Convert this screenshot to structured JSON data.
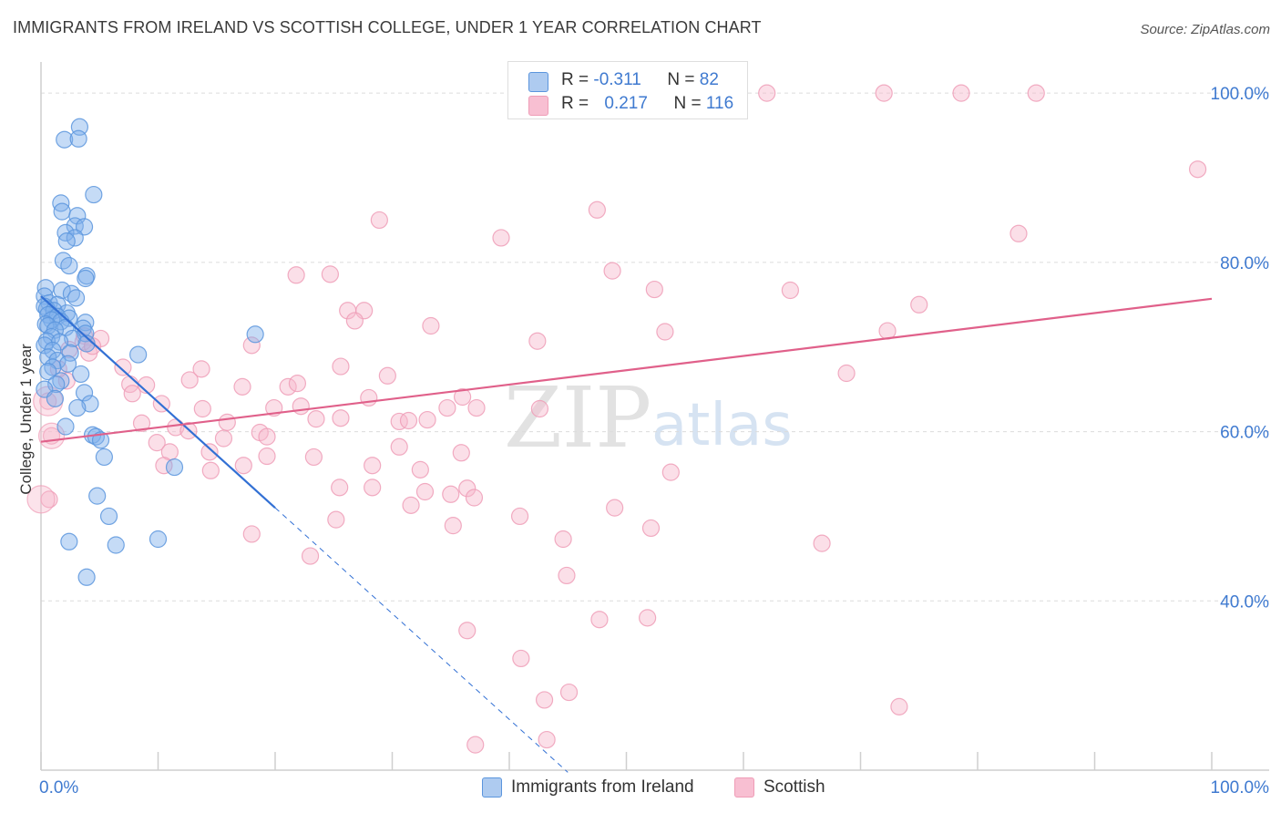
{
  "title": "IMMIGRANTS FROM IRELAND VS SCOTTISH COLLEGE, UNDER 1 YEAR CORRELATION CHART",
  "source": "Source: ZipAtlas.com",
  "watermark": {
    "zip": "ZIP",
    "atlas": "atlas"
  },
  "legend": {
    "rows": [
      {
        "r_label": "R = ",
        "r_value": "-0.311",
        "n_label": "N = ",
        "n_value": "82",
        "color": "#aecbf0"
      },
      {
        "r_label": "R = ",
        "r_value": "0.217",
        "n_label": "N = ",
        "n_value": "116",
        "color": "#f8bfd2"
      }
    ]
  },
  "bottom_legend": {
    "items": [
      {
        "label": "Immigrants from Ireland",
        "color": "#aecbf0"
      },
      {
        "label": "Scottish",
        "color": "#f8bfd2"
      }
    ]
  },
  "chart_data": {
    "type": "scatter",
    "title": "IMMIGRANTS FROM IRELAND VS SCOTTISH COLLEGE, UNDER 1 YEAR CORRELATION CHART",
    "xlabel": "",
    "ylabel": "College, Under 1 year",
    "xlim": [
      0,
      100
    ],
    "ylim": [
      20,
      104
    ],
    "x_tick_labels": [
      "0.0%",
      "100.0%"
    ],
    "y_ticks": [
      40,
      60,
      80,
      100
    ],
    "y_tick_labels": [
      "40.0%",
      "60.0%",
      "80.0%",
      "100.0%"
    ],
    "grid": true,
    "legend_position": "top-center",
    "series": [
      {
        "name": "Immigrants from Ireland",
        "color": "#7fb0ea",
        "stroke": "#5b95dd",
        "trend_color": "#3270d4",
        "trend": {
          "x0": 0.0,
          "y0": 76.0,
          "x1": 20.0,
          "y1": 51.0,
          "dash_to_x": 45.0
        },
        "points": [
          [
            3.3,
            96.0
          ],
          [
            2.0,
            94.5
          ],
          [
            3.2,
            94.6
          ],
          [
            4.5,
            88.0
          ],
          [
            1.7,
            87.0
          ],
          [
            1.8,
            86.0
          ],
          [
            3.1,
            85.5
          ],
          [
            2.9,
            84.3
          ],
          [
            3.7,
            84.2
          ],
          [
            2.1,
            83.5
          ],
          [
            2.9,
            82.9
          ],
          [
            2.2,
            82.5
          ],
          [
            1.9,
            80.2
          ],
          [
            2.4,
            79.6
          ],
          [
            3.9,
            78.4
          ],
          [
            3.8,
            78.1
          ],
          [
            0.4,
            77.0
          ],
          [
            1.8,
            76.7
          ],
          [
            2.6,
            76.3
          ],
          [
            0.3,
            76.0
          ],
          [
            3.0,
            75.8
          ],
          [
            0.7,
            75.2
          ],
          [
            1.4,
            75.0
          ],
          [
            0.3,
            74.8
          ],
          [
            0.5,
            74.5
          ],
          [
            1.1,
            74.3
          ],
          [
            2.2,
            74.0
          ],
          [
            0.6,
            73.8
          ],
          [
            1.4,
            73.6
          ],
          [
            2.4,
            73.4
          ],
          [
            0.9,
            73.2
          ],
          [
            1.7,
            73.0
          ],
          [
            3.8,
            72.9
          ],
          [
            0.4,
            72.7
          ],
          [
            0.6,
            72.5
          ],
          [
            2.1,
            72.3
          ],
          [
            3.6,
            72.2
          ],
          [
            1.2,
            72.0
          ],
          [
            3.8,
            71.6
          ],
          [
            0.9,
            71.2
          ],
          [
            2.7,
            71.0
          ],
          [
            18.3,
            71.5
          ],
          [
            0.5,
            70.7
          ],
          [
            1.6,
            70.6
          ],
          [
            3.9,
            70.4
          ],
          [
            0.3,
            70.2
          ],
          [
            1.0,
            69.6
          ],
          [
            2.5,
            69.3
          ],
          [
            8.3,
            69.1
          ],
          [
            0.6,
            68.8
          ],
          [
            1.4,
            68.4
          ],
          [
            2.3,
            68.0
          ],
          [
            1.0,
            67.6
          ],
          [
            0.6,
            67.1
          ],
          [
            3.4,
            66.8
          ],
          [
            1.7,
            66.0
          ],
          [
            1.3,
            65.6
          ],
          [
            0.3,
            65.0
          ],
          [
            3.7,
            64.6
          ],
          [
            1.2,
            63.9
          ],
          [
            4.2,
            63.3
          ],
          [
            3.1,
            62.8
          ],
          [
            2.1,
            60.6
          ],
          [
            4.4,
            59.6
          ],
          [
            4.7,
            59.4
          ],
          [
            5.1,
            59.0
          ],
          [
            5.4,
            57.0
          ],
          [
            11.4,
            55.8
          ],
          [
            4.8,
            52.4
          ],
          [
            5.8,
            50.0
          ],
          [
            2.4,
            47.0
          ],
          [
            10.0,
            47.3
          ],
          [
            6.4,
            46.6
          ],
          [
            3.9,
            42.8
          ]
        ]
      },
      {
        "name": "Scottish",
        "color": "#f7b8cc",
        "stroke": "#ef9db7",
        "trend_color": "#e0608a",
        "trend": {
          "x0": 0.0,
          "y0": 58.8,
          "x1": 100.0,
          "y1": 75.7
        },
        "points": [
          [
            41.0,
            100.0
          ],
          [
            45.0,
            100.0
          ],
          [
            49.8,
            100.0
          ],
          [
            53.0,
            100.0
          ],
          [
            62.0,
            100.0
          ],
          [
            72.0,
            100.0
          ],
          [
            78.6,
            100.0
          ],
          [
            85.0,
            100.0
          ],
          [
            98.8,
            91.0
          ],
          [
            47.5,
            86.2
          ],
          [
            28.9,
            85.0
          ],
          [
            39.3,
            82.9
          ],
          [
            83.5,
            83.4
          ],
          [
            48.8,
            79.0
          ],
          [
            21.8,
            78.5
          ],
          [
            24.7,
            78.6
          ],
          [
            52.4,
            76.8
          ],
          [
            64.0,
            76.7
          ],
          [
            75.0,
            75.0
          ],
          [
            26.2,
            74.3
          ],
          [
            27.6,
            74.3
          ],
          [
            26.8,
            73.1
          ],
          [
            33.3,
            72.5
          ],
          [
            53.3,
            71.8
          ],
          [
            72.3,
            71.9
          ],
          [
            3.7,
            71.3
          ],
          [
            5.1,
            71.0
          ],
          [
            18.0,
            70.2
          ],
          [
            42.4,
            70.7
          ],
          [
            4.1,
            69.3
          ],
          [
            7.0,
            67.6
          ],
          [
            13.7,
            67.4
          ],
          [
            25.6,
            67.7
          ],
          [
            29.6,
            66.6
          ],
          [
            12.7,
            66.1
          ],
          [
            68.8,
            66.9
          ],
          [
            7.6,
            65.6
          ],
          [
            9.0,
            65.5
          ],
          [
            17.2,
            65.3
          ],
          [
            21.1,
            65.3
          ],
          [
            21.9,
            65.7
          ],
          [
            28.0,
            64.0
          ],
          [
            7.8,
            64.5
          ],
          [
            10.3,
            63.3
          ],
          [
            19.9,
            62.8
          ],
          [
            22.2,
            63.0
          ],
          [
            36.0,
            64.1
          ],
          [
            37.2,
            62.8
          ],
          [
            42.6,
            62.7
          ],
          [
            34.7,
            62.8
          ],
          [
            13.8,
            62.7
          ],
          [
            23.5,
            61.5
          ],
          [
            25.6,
            61.6
          ],
          [
            30.6,
            61.2
          ],
          [
            31.4,
            61.3
          ],
          [
            33.0,
            61.4
          ],
          [
            15.9,
            61.1
          ],
          [
            8.6,
            61.0
          ],
          [
            11.5,
            60.5
          ],
          [
            12.6,
            60.1
          ],
          [
            18.7,
            59.9
          ],
          [
            19.3,
            59.4
          ],
          [
            15.6,
            59.2
          ],
          [
            9.9,
            58.7
          ],
          [
            11.0,
            57.6
          ],
          [
            30.6,
            58.2
          ],
          [
            14.4,
            57.6
          ],
          [
            19.3,
            57.1
          ],
          [
            23.3,
            57.0
          ],
          [
            35.9,
            57.5
          ],
          [
            28.3,
            56.0
          ],
          [
            17.3,
            56.0
          ],
          [
            10.5,
            56.0
          ],
          [
            32.4,
            55.5
          ],
          [
            14.5,
            55.4
          ],
          [
            36.4,
            53.3
          ],
          [
            28.3,
            53.4
          ],
          [
            35.0,
            52.6
          ],
          [
            32.8,
            52.9
          ],
          [
            53.8,
            55.2
          ],
          [
            25.5,
            53.4
          ],
          [
            31.6,
            51.3
          ],
          [
            37.0,
            52.2
          ],
          [
            49.0,
            51.0
          ],
          [
            40.9,
            50.0
          ],
          [
            25.2,
            49.6
          ],
          [
            35.2,
            48.9
          ],
          [
            52.1,
            48.6
          ],
          [
            18.0,
            47.9
          ],
          [
            44.6,
            47.3
          ],
          [
            66.7,
            46.8
          ],
          [
            23.0,
            45.3
          ],
          [
            44.9,
            43.0
          ],
          [
            36.4,
            36.5
          ],
          [
            47.7,
            37.8
          ],
          [
            51.8,
            38.0
          ],
          [
            41.0,
            33.2
          ],
          [
            45.1,
            29.2
          ],
          [
            43.0,
            28.3
          ],
          [
            73.3,
            27.5
          ],
          [
            43.2,
            23.6
          ],
          [
            37.1,
            23.0
          ],
          [
            2.2,
            66.0
          ],
          [
            0.6,
            63.6
          ],
          [
            0.9,
            59.5
          ],
          [
            0.7,
            52.0
          ],
          [
            2.4,
            69.7
          ],
          [
            1.5,
            67.4
          ],
          [
            3.6,
            70.6
          ],
          [
            4.4,
            70.1
          ]
        ]
      }
    ]
  }
}
